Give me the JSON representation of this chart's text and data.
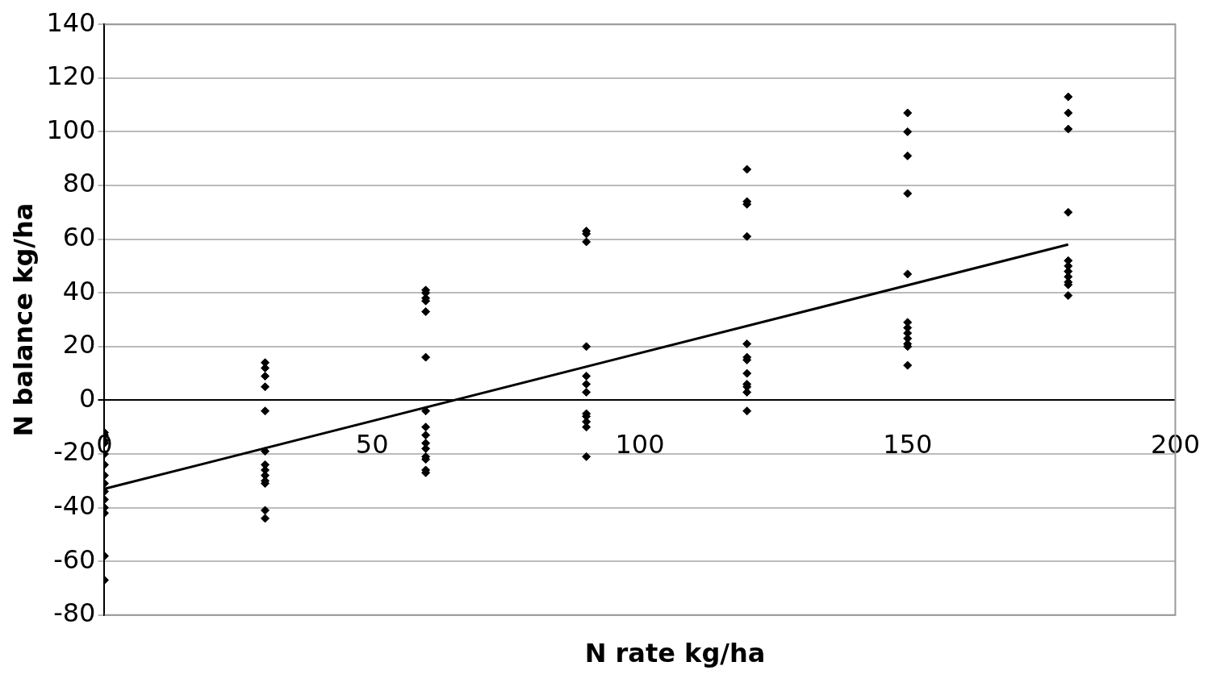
{
  "chart_data": {
    "type": "scatter",
    "xlabel": "N rate kg/ha",
    "ylabel": "N balance kg/ha",
    "xlim": [
      0,
      200
    ],
    "xticks": [
      0,
      50,
      100,
      150,
      200
    ],
    "ylim": [
      -80,
      140
    ],
    "yticks": [
      -80,
      -60,
      -40,
      -20,
      0,
      20,
      40,
      60,
      80,
      100,
      120,
      140
    ],
    "grid": "y",
    "legend": false,
    "marker": "diamond",
    "series": [
      {
        "color": "#000000",
        "x": [
          0,
          0,
          0,
          0,
          0,
          0,
          0,
          0,
          0,
          0,
          0,
          0,
          0,
          0,
          30,
          30,
          30,
          30,
          30,
          30,
          30,
          30,
          30,
          30,
          30,
          30,
          30,
          60,
          60,
          60,
          60,
          60,
          60,
          60,
          60,
          60,
          60,
          60,
          60,
          60,
          60,
          60,
          90,
          90,
          90,
          90,
          90,
          90,
          90,
          90,
          90,
          90,
          90,
          90,
          120,
          120,
          120,
          120,
          120,
          120,
          120,
          120,
          120,
          120,
          120,
          120,
          150,
          150,
          150,
          150,
          150,
          150,
          150,
          150,
          150,
          150,
          150,
          150,
          180,
          180,
          180,
          180,
          180,
          180,
          180,
          180,
          180,
          180,
          180
        ],
        "values": [
          -12,
          -13,
          -15,
          -16,
          -20,
          -24,
          -28,
          -31,
          -34,
          -37,
          -40,
          -42,
          -58,
          -67,
          14,
          12,
          9,
          5,
          -4,
          -19,
          -24,
          -26,
          -28,
          -30,
          -31,
          -41,
          -44,
          41,
          40,
          38,
          37,
          33,
          16,
          -4,
          -10,
          -13,
          -16,
          -18,
          -21,
          -22,
          -26,
          -27,
          63,
          62,
          59,
          20,
          9,
          6,
          3,
          -5,
          -6,
          -8,
          -10,
          -21,
          86,
          74,
          73,
          61,
          21,
          16,
          15,
          10,
          6,
          5,
          3,
          -4,
          107,
          100,
          91,
          77,
          47,
          29,
          27,
          25,
          23,
          21,
          20,
          13,
          113,
          107,
          101,
          70,
          52,
          50,
          48,
          46,
          44,
          43,
          39
        ]
      },
      {
        "type": "line",
        "color": "#000000",
        "marker": "none",
        "line_style": "solid",
        "x": [
          0,
          180
        ],
        "values": [
          -33,
          58
        ]
      }
    ]
  }
}
